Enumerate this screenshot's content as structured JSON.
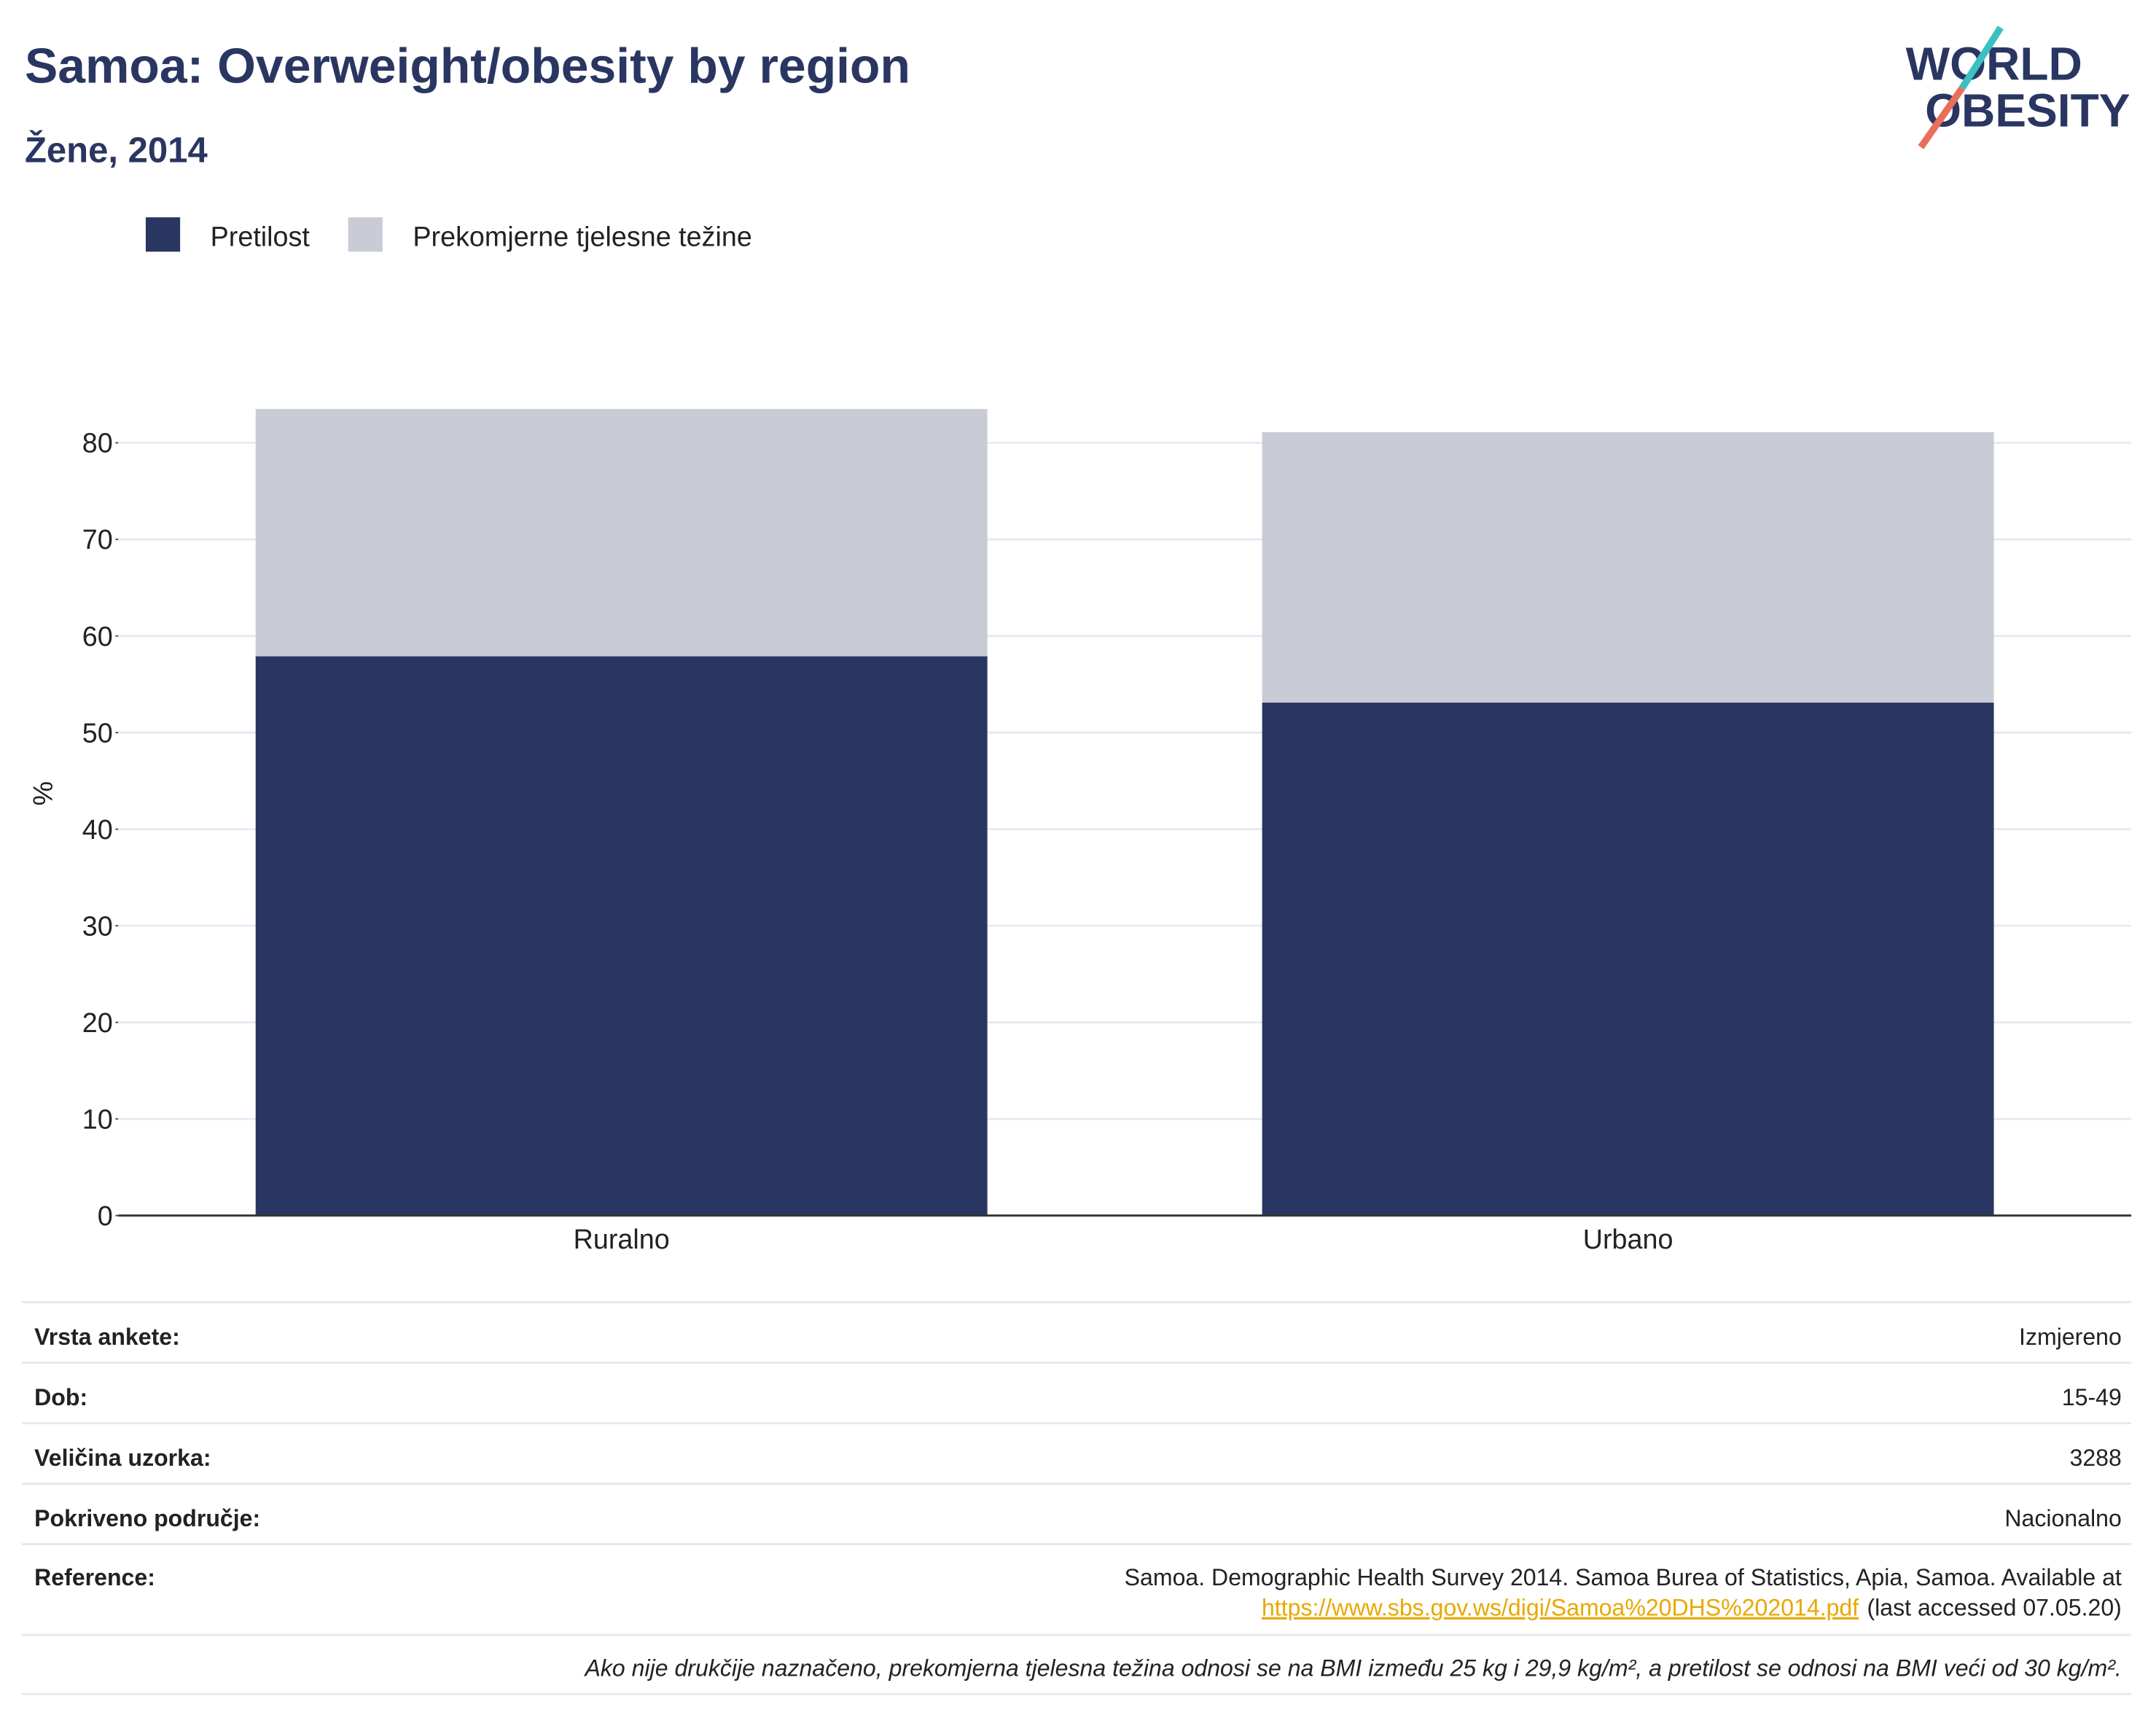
{
  "chart_data": {
    "type": "stacked_bar",
    "title": "Samoa: Overweight/obesity by region",
    "subtitle": "Žene, 2014",
    "y_label": "%",
    "categories": [
      "Ruralno",
      "Urbano"
    ],
    "series": [
      {
        "name": "Pretilost",
        "color": "#2a3662",
        "values": [
          57.9,
          53.1
        ]
      },
      {
        "name": "Prekomjerne tjelesne težine",
        "color": "#c9cbd6",
        "values": [
          25.6,
          28.0
        ]
      }
    ],
    "ylim": [
      0,
      88
    ],
    "yticks": [
      0,
      10,
      20,
      30,
      40,
      50,
      60,
      70,
      80
    ],
    "grid": true
  },
  "logo": {
    "line1": "WORLD",
    "line2": "OBESITY"
  },
  "info": {
    "rows": [
      {
        "label": "Vrsta ankete:",
        "value": "Izmjereno"
      },
      {
        "label": "Dob:",
        "value": "15-49"
      },
      {
        "label": "Veličina uzorka:",
        "value": "3288"
      },
      {
        "label": "Pokriveno područje:",
        "value": "Nacionalno"
      }
    ],
    "reference": {
      "label": "Reference:",
      "text": "Samoa. Demographic Health Survey 2014. Samoa Burea of Statistics, Apia, Samoa. Available at",
      "link": "https://www.sbs.gov.ws/digi/Samoa%20DHS%202014.pdf",
      "accessed": "(last accessed 07.05.20)"
    },
    "footnote": "Ako nije drukčije naznačeno, prekomjerna tjelesna težina odnosi se na BMI između 25 kg i 29,9 kg/m², a pretilost se odnosi na BMI veći od 30 kg/m²."
  }
}
